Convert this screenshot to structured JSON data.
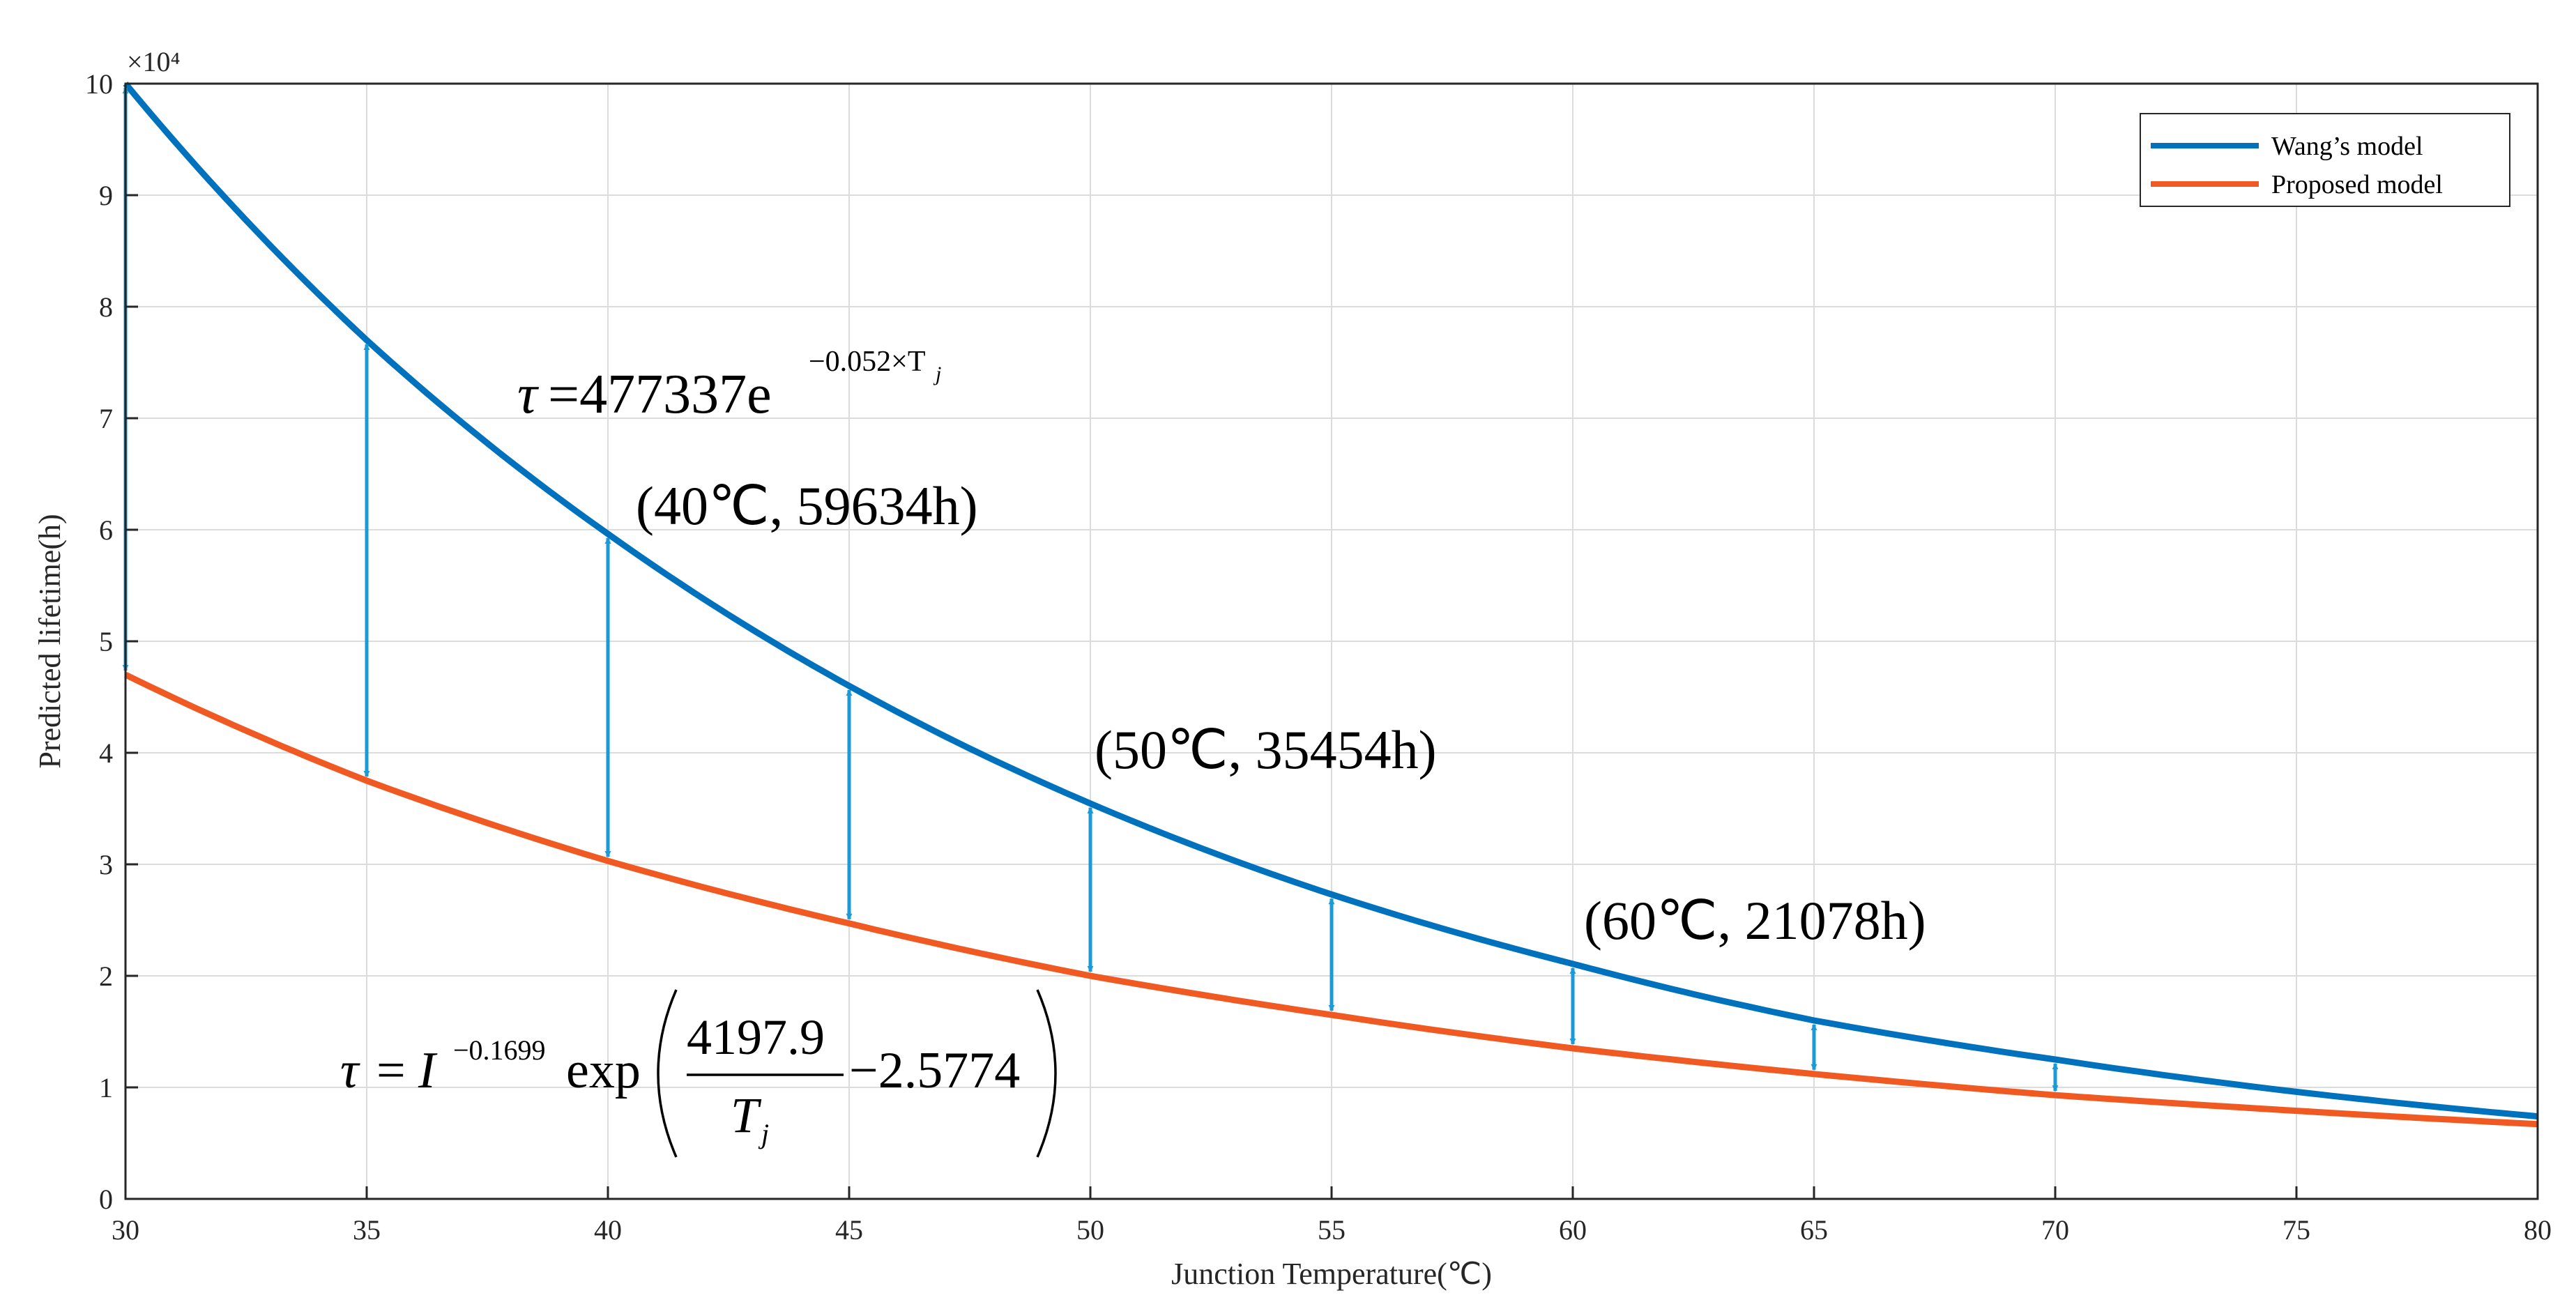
{
  "chart_data": {
    "type": "line",
    "title": "",
    "xlabel": "Junction Temperature(℃)",
    "ylabel": "Predicted lifetime(h)",
    "xlim": [
      30,
      80
    ],
    "ylim": [
      0,
      100000
    ],
    "y_multiplier_label": "×10⁴",
    "xticks": [
      30,
      35,
      40,
      45,
      50,
      55,
      60,
      65,
      70,
      75,
      80
    ],
    "yticks": [
      0,
      1,
      2,
      3,
      4,
      5,
      6,
      7,
      8,
      9,
      10
    ],
    "grid": true,
    "legend_position": "top-right",
    "series": [
      {
        "name": "Wang’s model",
        "color": "#0072BD",
        "x": [
          30,
          35,
          40,
          45,
          50,
          55,
          60,
          65,
          70,
          75,
          80
        ],
        "values": [
          100000,
          77000,
          59634,
          46000,
          35454,
          27300,
          21078,
          16000,
          12500,
          9600,
          7400
        ]
      },
      {
        "name": "Proposed model",
        "color": "#F05A22",
        "x": [
          30,
          35,
          40,
          45,
          50,
          55,
          60,
          65,
          70,
          75,
          80
        ],
        "values": [
          47000,
          37500,
          30300,
          24700,
          20000,
          16500,
          13500,
          11200,
          9300,
          7900,
          6700
        ]
      }
    ],
    "difference_arrows": {
      "color": "#1A9AD6",
      "x": [
        30,
        35,
        40,
        45,
        50,
        55,
        60,
        65,
        70
      ]
    },
    "annotations": [
      {
        "text": "(40℃, 59634h)",
        "x": 40,
        "y": 59634
      },
      {
        "text": "(50℃, 35454h)",
        "x": 50,
        "y": 35454
      },
      {
        "text": "(60℃, 21078h)",
        "x": 60,
        "y": 21078
      }
    ],
    "formula_wang": {
      "lhs": "τ",
      "eq": "=477337e",
      "exponent": "−0.052×T",
      "exponent_sub": "j"
    },
    "formula_proposed": {
      "lhs": "τ",
      "eq": "=",
      "base": "I",
      "exponent": "−0.1699",
      "func": "exp",
      "numerator": "4197.9",
      "denominator": "T",
      "denominator_sub": "j",
      "tail": "−2.5774"
    }
  }
}
